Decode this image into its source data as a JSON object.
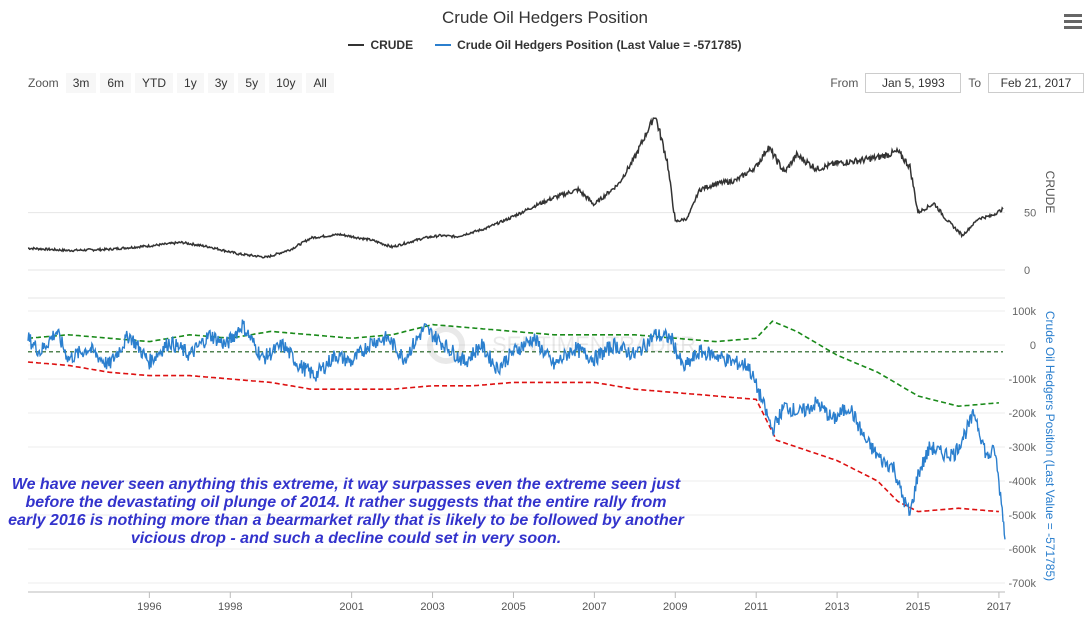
{
  "title": "Crude Oil Hedgers Position",
  "legend": [
    {
      "label": "CRUDE",
      "color": "#333333"
    },
    {
      "label": "Crude Oil Hedgers Position (Last Value = -571785)",
      "color": "#2b7fce"
    }
  ],
  "zoom": {
    "label": "Zoom",
    "buttons": [
      "3m",
      "6m",
      "YTD",
      "1y",
      "3y",
      "5y",
      "10y",
      "All"
    ]
  },
  "range": {
    "from_label": "From",
    "from_value": "Jan 5, 1993",
    "to_label": "To",
    "to_value": "Feb 21, 2017"
  },
  "watermark": "SENTIMENTRADER",
  "annotation": "We have never seen anything this extreme, it way surpasses even the extreme seen just before the devastating oil plunge of 2014. It rather suggests that the entire rally from early 2016 is nothing more than a bearmarket rally that is likely to be followed by another vicious drop - and such a decline could set in very soon.",
  "colors": {
    "crude": "#333333",
    "hedgers": "#2b7fce",
    "upper_band": "#1a8a1a",
    "lower_band": "#dd1111",
    "zero_line": "#1a5c1a"
  },
  "chart_data": [
    {
      "type": "line",
      "title": "",
      "ylabel": "CRUDE",
      "ylim": [
        0,
        148
      ],
      "yticks": [
        "0",
        "50"
      ],
      "series": [
        {
          "name": "CRUDE",
          "x": [
            1993.0,
            1994.0,
            1995.0,
            1996.0,
            1996.8,
            1997.5,
            1998.2,
            1998.9,
            1999.5,
            2000.0,
            2000.7,
            2001.5,
            2002.0,
            2002.8,
            2003.2,
            2003.6,
            2004.3,
            2004.9,
            2005.6,
            2006.0,
            2006.6,
            2007.0,
            2007.6,
            2008.0,
            2008.5,
            2008.8,
            2009.0,
            2009.3,
            2009.6,
            2010.0,
            2010.5,
            2011.0,
            2011.3,
            2011.7,
            2012.0,
            2012.5,
            2013.0,
            2013.5,
            2014.0,
            2014.5,
            2014.8,
            2015.0,
            2015.4,
            2015.7,
            2016.1,
            2016.5,
            2016.8,
            2017.1
          ],
          "values": [
            19,
            17,
            18,
            21,
            24,
            20,
            14,
            11,
            18,
            28,
            31,
            26,
            20,
            28,
            30,
            29,
            36,
            45,
            57,
            63,
            70,
            57,
            75,
            98,
            135,
            95,
            42,
            45,
            70,
            75,
            78,
            90,
            107,
            85,
            100,
            88,
            93,
            95,
            98,
            103,
            90,
            50,
            58,
            44,
            30,
            45,
            47,
            53
          ]
        }
      ]
    },
    {
      "type": "line",
      "title": "",
      "ylabel": "Crude Oil Hedgers Position (Last Value = -571785)",
      "ylim": [
        -700000,
        100000
      ],
      "yticks": [
        "100k",
        "0",
        "-100k",
        "-200k",
        "-300k",
        "-400k",
        "-500k",
        "-600k",
        "-700k"
      ],
      "xticks": [
        "1996",
        "1998",
        "2001",
        "2003",
        "2005",
        "2007",
        "2009",
        "2011",
        "2013",
        "2015",
        "2017"
      ],
      "series": [
        {
          "name": "Crude Oil Hedgers Position (Last Value = -571785)",
          "x": [
            1993.0,
            1993.3,
            1993.7,
            1994.0,
            1994.5,
            1995.0,
            1995.5,
            1996.0,
            1996.5,
            1997.0,
            1997.5,
            1997.9,
            1998.3,
            1998.8,
            1999.3,
            1999.7,
            2000.1,
            2000.6,
            2001.0,
            2001.5,
            2001.9,
            2002.3,
            2002.8,
            2003.3,
            2003.8,
            2004.2,
            2004.6,
            2005.0,
            2005.5,
            2006.0,
            2006.5,
            2007.0,
            2007.5,
            2008.0,
            2008.5,
            2008.9,
            2009.2,
            2009.6,
            2010.0,
            2010.4,
            2010.8,
            2011.1,
            2011.4,
            2011.7,
            2012.1,
            2012.5,
            2012.9,
            2013.3,
            2013.7,
            2014.1,
            2014.4,
            2014.6,
            2014.8,
            2015.0,
            2015.3,
            2015.6,
            2015.9,
            2016.2,
            2016.4,
            2016.7,
            2016.9,
            2017.1,
            2017.15
          ],
          "values": [
            20000,
            -20000,
            40000,
            -40000,
            -10000,
            -60000,
            30000,
            -50000,
            10000,
            -30000,
            30000,
            0,
            60000,
            -40000,
            0,
            -60000,
            -90000,
            -30000,
            -50000,
            10000,
            20000,
            -40000,
            50000,
            0,
            -50000,
            0,
            -70000,
            -20000,
            20000,
            -60000,
            -10000,
            -40000,
            0,
            -30000,
            30000,
            20000,
            -70000,
            -20000,
            -30000,
            -50000,
            -60000,
            -150000,
            -250000,
            -180000,
            -200000,
            -170000,
            -220000,
            -180000,
            -280000,
            -340000,
            -360000,
            -440000,
            -500000,
            -380000,
            -300000,
            -320000,
            -320000,
            -250000,
            -200000,
            -330000,
            -310000,
            -500000,
            -571785
          ]
        },
        {
          "name": "",
          "x": [
            1993.0,
            1994.0,
            1995.0,
            1996.0,
            1997.0,
            1998.0,
            1999.0,
            2000.0,
            2001.0,
            2002.0,
            2003.0,
            2004.0,
            2005.0,
            2006.0,
            2007.0,
            2008.0,
            2009.0,
            2010.0,
            2011.0,
            2011.4,
            2012.0,
            2013.0,
            2014.0,
            2015.0,
            2016.0,
            2017.0
          ],
          "values": [
            20000,
            30000,
            20000,
            10000,
            30000,
            20000,
            40000,
            30000,
            20000,
            30000,
            60000,
            50000,
            40000,
            30000,
            30000,
            30000,
            20000,
            10000,
            20000,
            70000,
            40000,
            -30000,
            -80000,
            -150000,
            -180000,
            -170000
          ]
        },
        {
          "name": "",
          "x": [
            1993.0,
            1994.0,
            1995.0,
            1996.0,
            1997.0,
            1998.0,
            1999.0,
            2000.0,
            2001.0,
            2002.0,
            2003.0,
            2004.0,
            2005.0,
            2006.0,
            2007.0,
            2008.0,
            2009.0,
            2010.0,
            2011.0,
            2011.5,
            2012.0,
            2013.0,
            2014.0,
            2014.5,
            2015.0,
            2016.0,
            2017.0
          ],
          "values": [
            -50000,
            -60000,
            -80000,
            -90000,
            -90000,
            -100000,
            -110000,
            -130000,
            -130000,
            -130000,
            -120000,
            -120000,
            -110000,
            -110000,
            -110000,
            -130000,
            -140000,
            -150000,
            -160000,
            -280000,
            -300000,
            -340000,
            -400000,
            -460000,
            -490000,
            -480000,
            -490000
          ]
        },
        {
          "name": "",
          "x": [
            1993.0,
            2017.1
          ],
          "values": [
            -20000,
            -20000
          ]
        }
      ]
    }
  ]
}
